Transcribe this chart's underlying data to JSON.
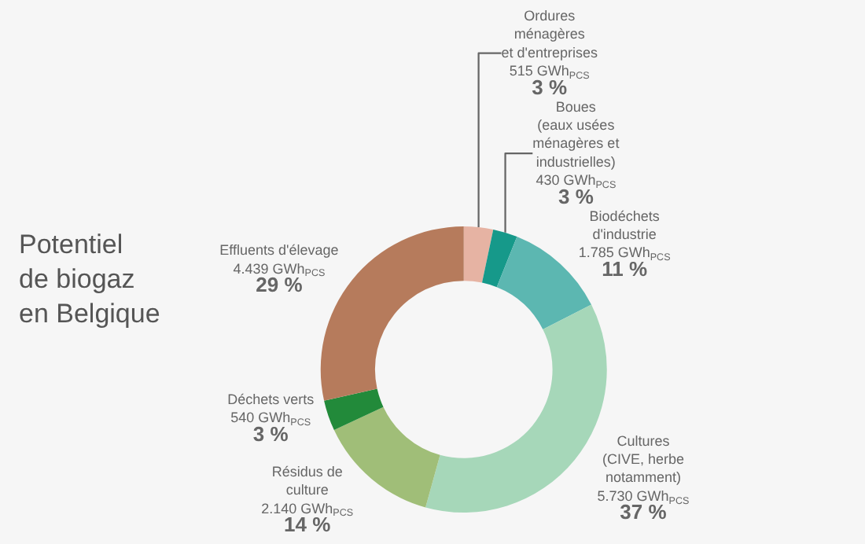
{
  "chart_data": {
    "type": "donut",
    "title": "Potentiel\nde biogaz\nen Belgique",
    "categories": [
      "Ordures\nménagères\net d'entreprises",
      "Boues\n(eaux usées\nménagères et\nindustrielles)",
      "Biodéchets\nd'industrie",
      "Cultures\n(CIVE, herbe\nnotamment)",
      "Résidus de\nculture",
      "Déchets verts",
      "Effluents d'élevage"
    ],
    "values": [
      515,
      430,
      1785,
      5730,
      2140,
      540,
      4439
    ],
    "value_labels": [
      "515 GWh$_{PCS}$\n3 %",
      "430 GWh$_{PCS}$\n3 %",
      "1.785 GWh$_{PCS}$\n11 %",
      "5.730 GWh$_{PCS}$\n37 %",
      "2.140 GWh$_{PCS}$\n14 %",
      "540 GWh$_{PCS}$\n3 %",
      "4.439 GWh$_{PCS}$\n29 %"
    ],
    "colors": [
      "#e6b3a3",
      "#16998a",
      "#5cb7b1",
      "#a6d7b9",
      "#a0be78",
      "#228a3a",
      "#b67b5c"
    ],
    "legend": false
  }
}
